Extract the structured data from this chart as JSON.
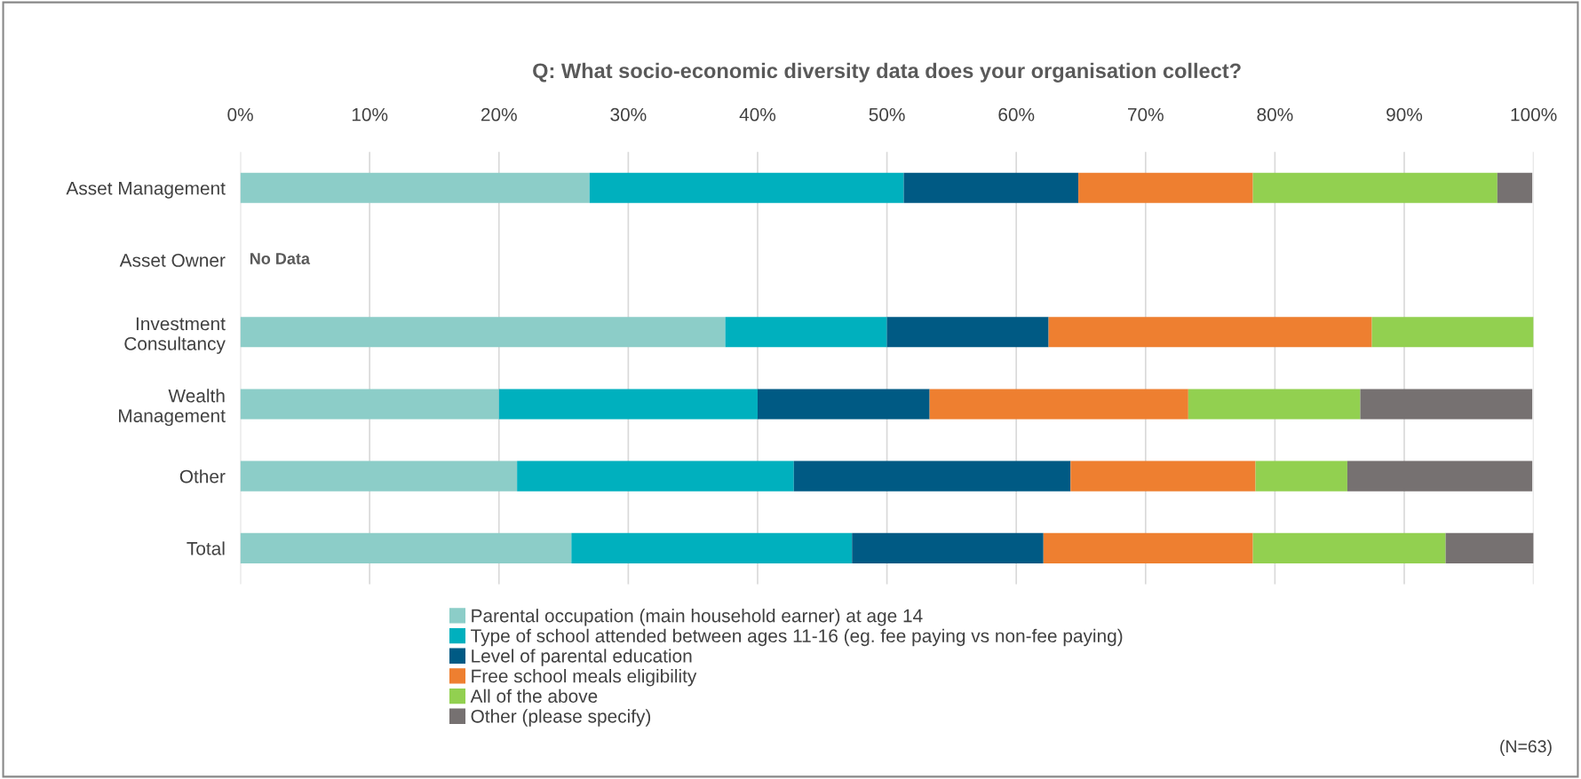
{
  "chart_data": {
    "type": "bar",
    "orientation": "horizontal",
    "stacked": true,
    "title": "Q: What socio-economic diversity data does your organisation collect?",
    "categories": [
      "Asset Management",
      "Asset Owner",
      "Investment\nConsultancy",
      "Wealth\nManagement",
      "Other",
      "Total"
    ],
    "series": [
      {
        "name": "Parental occupation (main household earner) at age 14",
        "color": "#8ccdc8",
        "values": [
          27.0,
          null,
          37.5,
          20.0,
          21.4,
          25.6
        ]
      },
      {
        "name": "Type of school attended between ages 11-16 (eg. fee paying vs non-fee paying)",
        "color": "#00b0be",
        "values": [
          24.3,
          null,
          12.5,
          20.0,
          21.4,
          21.7
        ]
      },
      {
        "name": "Level of parental education",
        "color": "#005a84",
        "values": [
          13.5,
          null,
          12.5,
          13.3,
          21.4,
          14.8
        ]
      },
      {
        "name": "Free school meals eligibility",
        "color": "#ee7f30",
        "values": [
          13.5,
          null,
          25.0,
          20.0,
          14.3,
          16.2
        ]
      },
      {
        "name": "All of the above",
        "color": "#92d050",
        "values": [
          18.9,
          null,
          12.5,
          13.3,
          7.1,
          14.9
        ]
      },
      {
        "name": "Other (please specify)",
        "color": "#767171",
        "values": [
          2.7,
          null,
          0,
          13.3,
          14.3,
          6.8
        ]
      }
    ],
    "xlim": [
      0,
      100
    ],
    "xticks": [
      {
        "value": 0,
        "label": "0%"
      },
      {
        "value": 10,
        "label": "10%"
      },
      {
        "value": 20,
        "label": "20%"
      },
      {
        "value": 30,
        "label": "30%"
      },
      {
        "value": 40,
        "label": "40%"
      },
      {
        "value": 50,
        "label": "50%"
      },
      {
        "value": 60,
        "label": "60%"
      },
      {
        "value": 70,
        "label": "70%"
      },
      {
        "value": 80,
        "label": "80%"
      },
      {
        "value": 90,
        "label": "90%"
      },
      {
        "value": 100,
        "label": "100%"
      }
    ],
    "grid": "x",
    "legend": "bottom",
    "annotations": [
      "No Data",
      "(N=63)"
    ]
  }
}
